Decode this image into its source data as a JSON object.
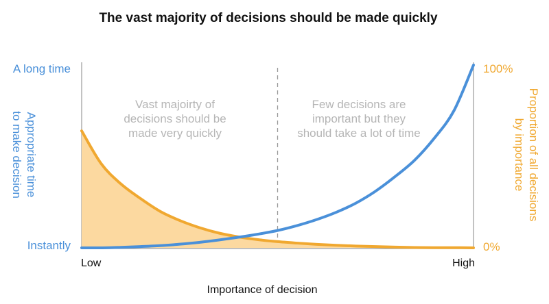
{
  "chart_data": {
    "type": "line",
    "title": "The vast majority of decisions should be made quickly",
    "xlabel": "Importance of decision",
    "x_ticks": [
      "Low",
      "High"
    ],
    "y_left": {
      "label": [
        "Appropriate time",
        "to make decision"
      ],
      "top_label": "A long time",
      "bottom_label": "Instantly",
      "color": "#4a90d9"
    },
    "y_right": {
      "label": [
        "Proportion of all decisions",
        "by importance"
      ],
      "top_label": "100%",
      "bottom_label": "0%",
      "color": "#f0a830"
    },
    "annotations": {
      "left": [
        "Vast majoirty of",
        "decisions should be",
        "made very quickly"
      ],
      "right": [
        "Few decisions are",
        "important but they",
        "should take a lot of time"
      ]
    },
    "x": [
      0,
      0.05,
      0.1,
      0.15,
      0.2,
      0.25,
      0.3,
      0.35,
      0.4,
      0.45,
      0.5,
      0.55,
      0.6,
      0.65,
      0.7,
      0.75,
      0.8,
      0.85,
      0.9,
      0.95,
      1.0
    ],
    "series": [
      {
        "color": "#4a90d9",
        "values": [
          0.0,
          0.0,
          0.003,
          0.007,
          0.012,
          0.02,
          0.03,
          0.043,
          0.058,
          0.075,
          0.095,
          0.122,
          0.155,
          0.195,
          0.245,
          0.31,
          0.39,
          0.48,
          0.6,
          0.75,
          1.0
        ]
      },
      {
        "color": "#f0a830",
        "fill": "#fcd9a0",
        "values": [
          0.64,
          0.46,
          0.35,
          0.27,
          0.2,
          0.15,
          0.111,
          0.081,
          0.06,
          0.045,
          0.034,
          0.026,
          0.019,
          0.014,
          0.01,
          0.007,
          0.004,
          0.002,
          0.001,
          0.001,
          0.0
        ]
      }
    ],
    "divider": {
      "x": 0.5,
      "style": "dashed"
    },
    "ylim": [
      0,
      1
    ],
    "grid": false
  }
}
